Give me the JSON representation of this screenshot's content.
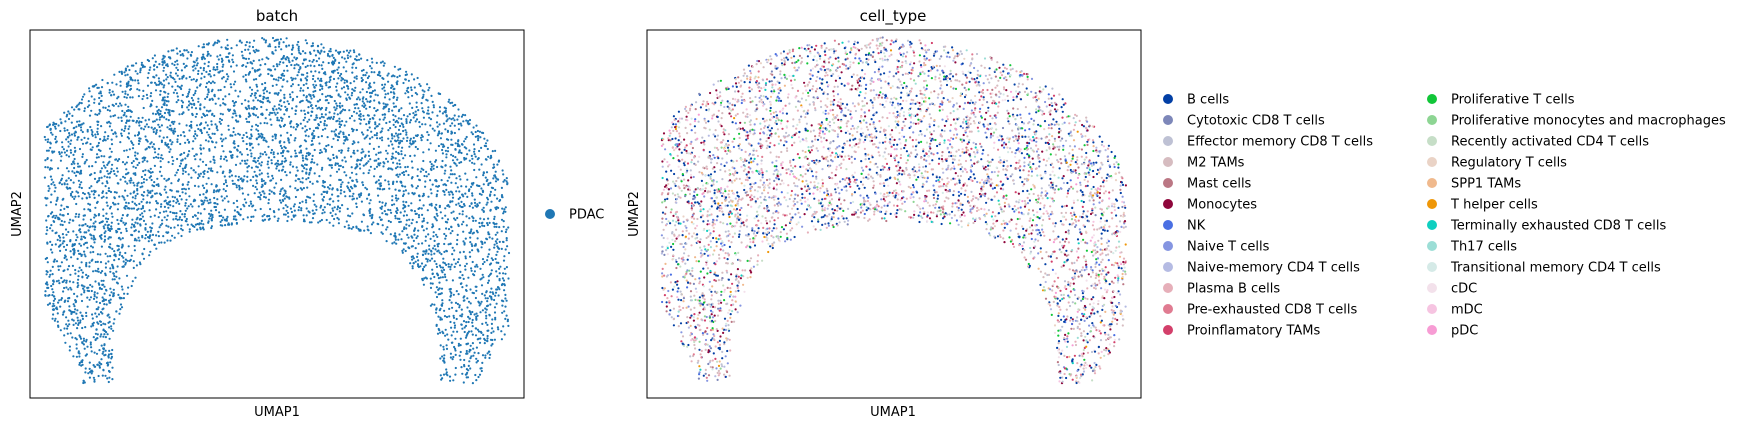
{
  "chart_data": [
    {
      "type": "scatter",
      "title": "batch",
      "xlabel": "UMAP1",
      "ylabel": "UMAP2",
      "grid": false,
      "ticks": false,
      "legend_placement": "right",
      "series": [
        {
          "name": "PDAC",
          "color": "#1f77b4"
        }
      ]
    },
    {
      "type": "scatter",
      "title": "cell_type",
      "xlabel": "UMAP1",
      "ylabel": "UMAP2",
      "grid": false,
      "ticks": false,
      "legend_placement": "right",
      "series": [
        {
          "name": "B cells",
          "color": "#023fa5"
        },
        {
          "name": "Cytotoxic CD8 T cells",
          "color": "#7d87b9"
        },
        {
          "name": "Effector memory CD8 T cells",
          "color": "#bec1d4"
        },
        {
          "name": "M2 TAMs",
          "color": "#d6bcc0"
        },
        {
          "name": "Mast cells",
          "color": "#bb7784"
        },
        {
          "name": "Monocytes",
          "color": "#8e063b"
        },
        {
          "name": "NK",
          "color": "#4a6fe3"
        },
        {
          "name": "Naive T cells",
          "color": "#8595e1"
        },
        {
          "name": "Naive-memory CD4 T cells",
          "color": "#b5bbe3"
        },
        {
          "name": "Plasma B cells",
          "color": "#e6afb9"
        },
        {
          "name": "Pre-exhausted CD8 T cells",
          "color": "#e07b91"
        },
        {
          "name": "Proinflamatory TAMs",
          "color": "#d33f6a"
        },
        {
          "name": "Proliferative T cells",
          "color": "#11c638"
        },
        {
          "name": "Proliferative monocytes and macrophages",
          "color": "#8dd593"
        },
        {
          "name": "Recently activated CD4 T cells",
          "color": "#c6dec7"
        },
        {
          "name": "Regulatory T cells",
          "color": "#ead3c6"
        },
        {
          "name": "SPP1 TAMs",
          "color": "#f0b98d"
        },
        {
          "name": "T helper cells",
          "color": "#ef9708"
        },
        {
          "name": "Terminally exhausted CD8 T cells",
          "color": "#0fcfc0"
        },
        {
          "name": "Th17 cells",
          "color": "#9cded6"
        },
        {
          "name": "Transitional memory CD4 T cells",
          "color": "#d5eae7"
        },
        {
          "name": "cDC",
          "color": "#f3e1eb"
        },
        {
          "name": "mDC",
          "color": "#f6c4e1"
        },
        {
          "name": "pDC",
          "color": "#f79cd4"
        }
      ]
    }
  ]
}
